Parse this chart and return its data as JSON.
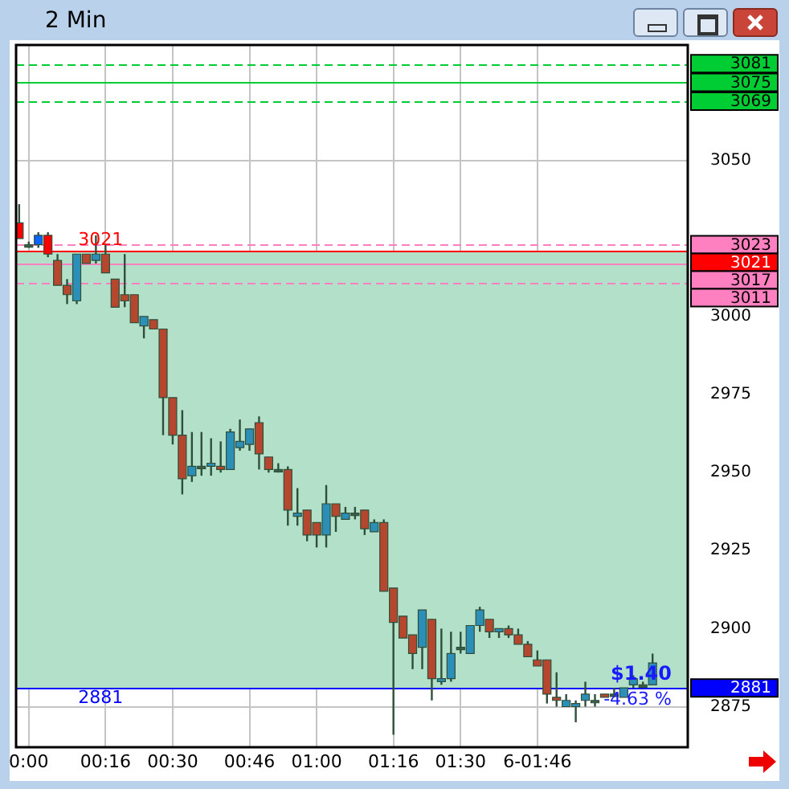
{
  "chart_data": {
    "type": "candlestick",
    "title": "2 Min",
    "x": [
      -0.0333,
      0,
      0.0333,
      0.0667,
      0.1,
      0.1333,
      0.1667,
      0.2,
      0.2333,
      0.2667,
      0.3,
      0.3333,
      0.3667,
      0.4,
      0.4333,
      0.4667,
      0.5,
      0.5333,
      0.5667,
      0.6,
      0.6333,
      0.6667,
      0.7,
      0.7333,
      0.7667,
      0.8,
      0.8333,
      0.8667,
      0.9,
      0.9333,
      0.9667,
      1,
      1.0333,
      1.0667,
      1.1,
      1.1333,
      1.1667,
      1.2,
      1.2333,
      1.2667,
      1.3,
      1.3333,
      1.3667,
      1.4,
      1.4333,
      1.4667,
      1.5,
      1.5333,
      1.5667,
      1.6,
      1.6333,
      1.6667,
      1.7,
      1.7333,
      1.7667,
      1.8,
      1.8333,
      1.8667,
      1.9,
      1.9333,
      1.9667,
      2,
      2.0333,
      2.0667,
      2.1,
      2.1333,
      2.1667
    ],
    "ohlc": [
      [
        3030,
        3036,
        3025,
        3025
      ],
      [
        3023,
        3024,
        3022,
        3023
      ],
      [
        3023,
        3027,
        3022,
        3026
      ],
      [
        3026,
        3027,
        3019,
        3020
      ],
      [
        3018,
        3020,
        3010,
        3010
      ],
      [
        3010,
        3012,
        3004,
        3007
      ],
      [
        3005,
        3020,
        3004,
        3020
      ],
      [
        3020,
        3020,
        3017,
        3017
      ],
      [
        3018,
        3026,
        3017,
        3020
      ],
      [
        3020,
        3023,
        3014,
        3014
      ],
      [
        3012,
        3012,
        3003,
        3003
      ],
      [
        3007,
        3020,
        3003,
        3005
      ],
      [
        3007,
        3007,
        2998,
        2998
      ],
      [
        2997,
        3000,
        2993,
        3000
      ],
      [
        2999,
        2999,
        2996,
        2996
      ],
      [
        2996,
        2996,
        2962,
        2974
      ],
      [
        2974,
        2974,
        2959,
        2962
      ],
      [
        2962,
        2970,
        2943,
        2948
      ],
      [
        2949,
        2963,
        2947,
        2952
      ],
      [
        2952,
        2963,
        2949,
        2952
      ],
      [
        2952,
        2961,
        2949,
        2953
      ],
      [
        2952,
        2960,
        2950,
        2951
      ],
      [
        2951,
        2964,
        2951,
        2963
      ],
      [
        2958,
        2967,
        2957,
        2960
      ],
      [
        2959,
        2964,
        2957,
        2964
      ],
      [
        2966,
        2968,
        2951,
        2956
      ],
      [
        2955,
        2955,
        2950,
        2951
      ],
      [
        2951,
        2953,
        2950,
        2951
      ],
      [
        2951,
        2952,
        2933,
        2938
      ],
      [
        2936,
        2945,
        2933,
        2937
      ],
      [
        2938,
        2938,
        2928,
        2930
      ],
      [
        2934,
        2934,
        2926,
        2930
      ],
      [
        2930,
        2946,
        2926,
        2940
      ],
      [
        2940,
        2940,
        2931,
        2936
      ],
      [
        2935,
        2939,
        2935,
        2937
      ],
      [
        2937,
        2939,
        2935,
        2937
      ],
      [
        2938,
        2938,
        2930,
        2932
      ],
      [
        2931,
        2935,
        2931,
        2934
      ],
      [
        2934,
        2935,
        2912,
        2912
      ],
      [
        2913,
        2913,
        2866,
        2902
      ],
      [
        2904,
        2904,
        2897,
        2897
      ],
      [
        2898,
        2898,
        2887,
        2892
      ],
      [
        2894,
        2906,
        2887,
        2906
      ],
      [
        2903,
        2903,
        2877,
        2884
      ],
      [
        2883,
        2900,
        2882,
        2884
      ],
      [
        2884,
        2899,
        2883,
        2892
      ],
      [
        2894,
        2899,
        2892,
        2894
      ],
      [
        2892,
        2901,
        2892,
        2901
      ],
      [
        2901,
        2907,
        2899,
        2906
      ],
      [
        2903,
        2903,
        2897,
        2899
      ],
      [
        2899,
        2900,
        2897,
        2900
      ],
      [
        2900,
        2901,
        2897,
        2898
      ],
      [
        2898,
        2900,
        2895,
        2895
      ],
      [
        2895,
        2896,
        2891,
        2891
      ],
      [
        2890,
        2893,
        2888,
        2888
      ],
      [
        2890,
        2890,
        2876,
        2879
      ],
      [
        2878,
        2886,
        2875,
        2877
      ],
      [
        2875,
        2879,
        2875,
        2877
      ],
      [
        2875,
        2877,
        2870,
        2876
      ],
      [
        2877,
        2883,
        2875,
        2879
      ],
      [
        2877,
        2879,
        2875,
        2877
      ],
      [
        2879,
        2879,
        2878,
        2878
      ],
      [
        2879,
        2881,
        2878,
        2879
      ],
      [
        2878,
        2881,
        2878,
        2881
      ],
      [
        2882,
        2885,
        2881,
        2884
      ],
      [
        2882,
        2883,
        2881,
        2882
      ],
      [
        2882,
        2892,
        2882,
        2889
      ]
    ],
    "colors": [
      "#ff0000",
      "#3d5f48",
      "#0a64ff",
      "#ff0000",
      "#b5472f",
      "#b5472f",
      "#2b8fb8",
      "#b5472f",
      "#2b8fb8",
      "#b5472f",
      "#b5472f",
      "#b5472f",
      "#b5472f",
      "#2b8fb8",
      "#b5472f",
      "#b5472f",
      "#b5472f",
      "#b5472f",
      "#2b8fb8",
      "#3d5f48",
      "#2b8fb8",
      "#b5472f",
      "#2b8fb8",
      "#2b8fb8",
      "#2b8fb8",
      "#b5472f",
      "#b5472f",
      "#3d5f48",
      "#b5472f",
      "#2b8fb8",
      "#b5472f",
      "#b5472f",
      "#2b8fb8",
      "#b5472f",
      "#2b8fb8",
      "#3d5f48",
      "#b5472f",
      "#2b8fb8",
      "#b5472f",
      "#b5472f",
      "#b5472f",
      "#b5472f",
      "#2b8fb8",
      "#b5472f",
      "#2b8fb8",
      "#2b8fb8",
      "#3d5f48",
      "#2b8fb8",
      "#2b8fb8",
      "#b5472f",
      "#2b8fb8",
      "#b5472f",
      "#b5472f",
      "#b5472f",
      "#b5472f",
      "#b5472f",
      "#b5472f",
      "#2b8fb8",
      "#2b8fb8",
      "#2b8fb8",
      "#3d5f48",
      "#b5472f",
      "#3d5f48",
      "#2b8fb8",
      "#2b8fb8",
      "#3d5f48",
      "#2b8fb8"
    ],
    "xlim": [
      -0.044,
      2.289
    ],
    "xticks": [
      {
        "value": 0,
        "label": "0:00"
      },
      {
        "value": 0.2667,
        "label": "00:16"
      },
      {
        "value": 0.5,
        "label": "00:30"
      },
      {
        "value": 0.7667,
        "label": "00:46"
      },
      {
        "value": 1,
        "label": "01:00"
      },
      {
        "value": 1.2667,
        "label": "01:16"
      },
      {
        "value": 1.5,
        "label": "01:30"
      },
      {
        "value": 1.7667,
        "label": "6-01:46"
      }
    ],
    "ylim": [
      2862,
      3087
    ],
    "yticks": [
      2875,
      2900,
      2925,
      2950,
      2975,
      3000,
      3050
    ],
    "grid": true,
    "legend": "right",
    "bands": [
      {
        "axis": "y",
        "from": 2881,
        "to": 3021,
        "color": "#b2e0c8"
      }
    ],
    "ref_lines": [
      {
        "axis": "y",
        "value": 3081,
        "label": "3081",
        "color": "#00cc33",
        "line_style": "dashed"
      },
      {
        "axis": "y",
        "value": 3075,
        "label": "3075",
        "color": "#00cc33",
        "line_style": "solid"
      },
      {
        "axis": "y",
        "value": 3069,
        "label": "3069",
        "color": "#00cc33",
        "line_style": "dashed"
      },
      {
        "axis": "y",
        "value": 3023,
        "label": "3023",
        "color": "#ff80c0",
        "line_style": "dashed"
      },
      {
        "axis": "y",
        "value": 3021,
        "label": "3021",
        "color": "#ff0000",
        "line_style": "solid"
      },
      {
        "axis": "y",
        "value": 3017,
        "label": "3017",
        "color": "#ff80c0",
        "line_style": "solid"
      },
      {
        "axis": "y",
        "value": 3011,
        "label": "3011",
        "color": "#ff80c0",
        "line_style": "dashed"
      },
      {
        "axis": "y",
        "value": 2881,
        "label": "2881",
        "color": "#0000ff",
        "line_style": "solid"
      }
    ],
    "annotations": [
      {
        "text": "3021",
        "x": 0.25,
        "y": 3021
      },
      {
        "text": "2881",
        "x": 0.25,
        "y": 2881
      },
      "$1.40",
      "-4.63 %"
    ]
  }
}
